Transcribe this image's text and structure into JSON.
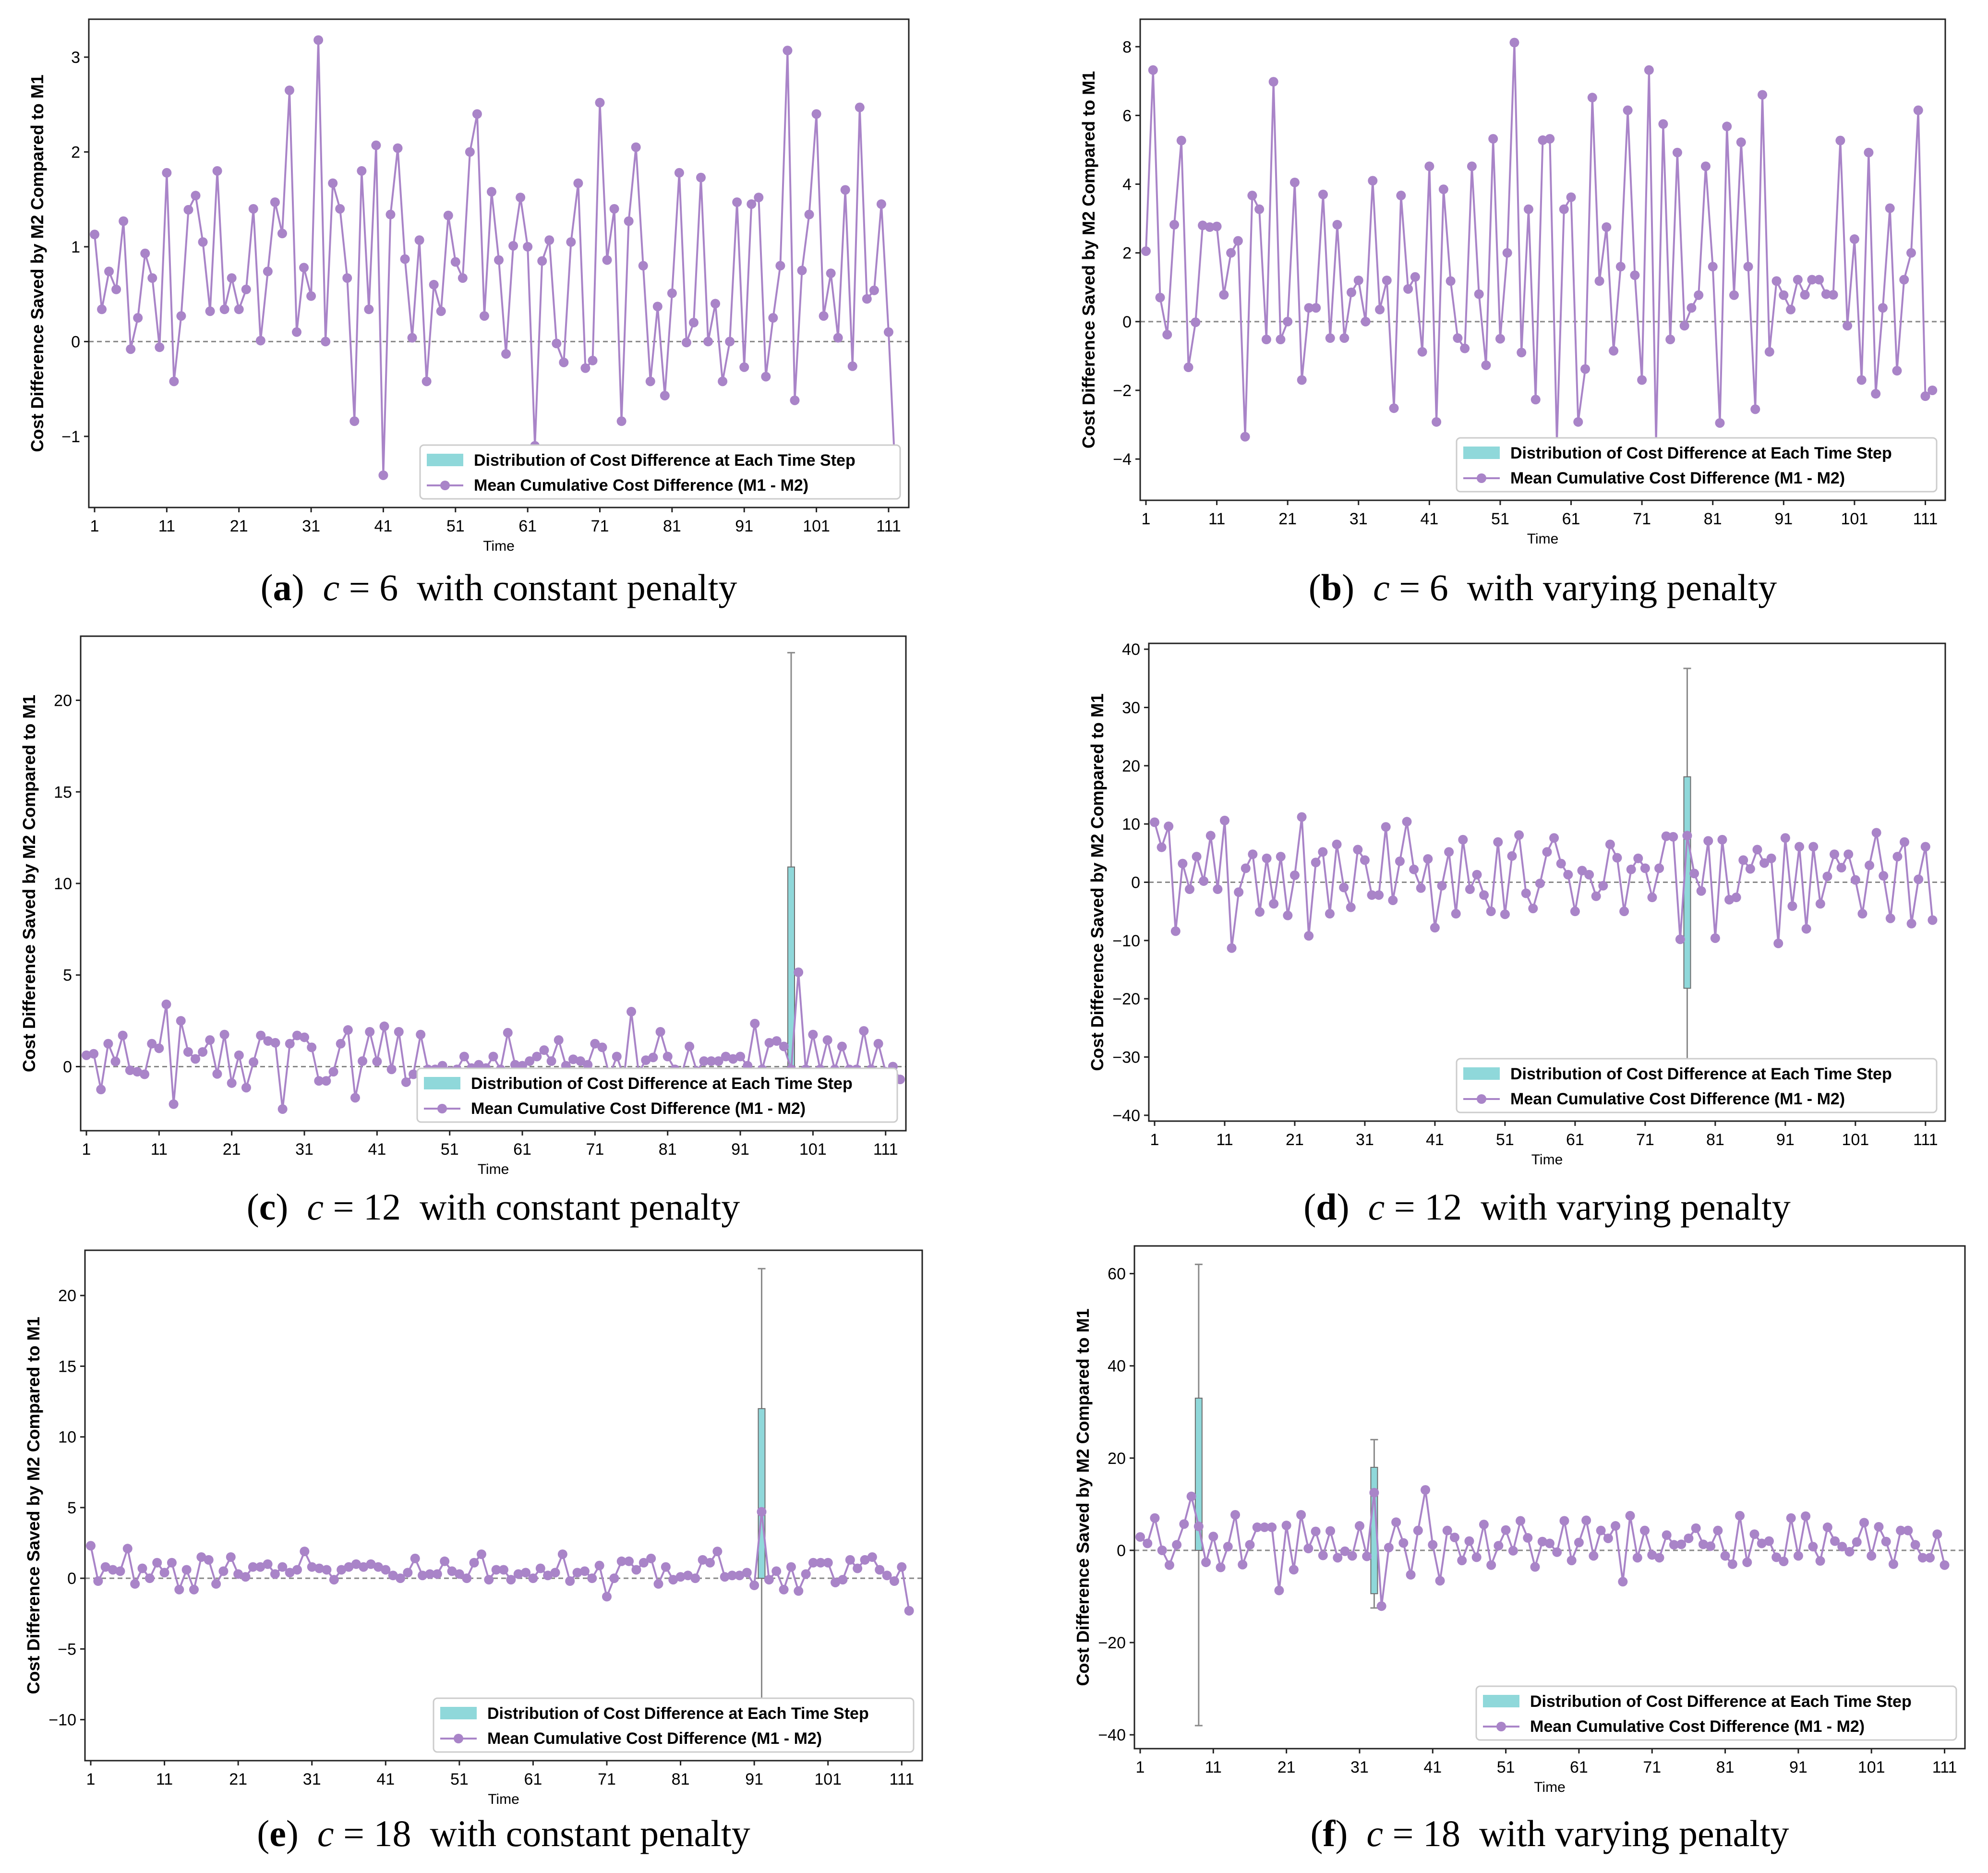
{
  "colors": {
    "series": "#a984c8",
    "box_fill": "#8fd8da",
    "zero_line": "#888888"
  },
  "chart_data": [
    {
      "type": "line",
      "panel": "a",
      "caption": {
        "letter": "a",
        "text": "with constant penalty",
        "variable": "c",
        "eq": "=",
        "value": "6"
      },
      "xlabel": "Time",
      "ylabel": "Cost Difference Saved by M2 Compared to M1",
      "xticks": [
        "1",
        "11",
        "21",
        "31",
        "41",
        "51",
        "61",
        "71",
        "81",
        "91",
        "101",
        "111"
      ],
      "yticks": [
        -1,
        0,
        1,
        2,
        3
      ],
      "xlim": [
        1,
        113
      ],
      "ylim": [
        -1.75,
        3.4
      ],
      "legend": [
        "Distribution of Cost Difference at Each Time Step",
        "Mean Cumulative Cost Difference (M1 - M2)"
      ],
      "legend_position": "lower right",
      "series": [
        {
          "name": "Mean Cumulative Cost Difference (M1 - M2)",
          "values": [
            1.13,
            0.34,
            0.74,
            0.55,
            1.27,
            -0.08,
            0.25,
            0.93,
            0.67,
            -0.06,
            1.78,
            -0.42,
            0.27,
            1.39,
            1.54,
            1.05,
            0.32,
            1.8,
            0.34,
            0.67,
            0.34,
            0.55,
            1.4,
            0.01,
            0.74,
            1.47,
            1.14,
            2.65,
            0.1,
            0.78,
            0.48,
            3.18,
            0.0,
            1.67,
            1.4,
            0.67,
            -0.84,
            1.8,
            0.34,
            2.07,
            -1.41,
            1.34,
            2.04,
            0.87,
            0.04,
            1.07,
            -0.42,
            0.6,
            0.32,
            1.33,
            0.84,
            0.67,
            2.0,
            2.4,
            0.27,
            1.58,
            0.86,
            -0.13,
            1.01,
            1.52,
            1.0,
            -1.1,
            0.85,
            1.07,
            -0.02,
            -0.22,
            1.05,
            1.67,
            -0.28,
            -0.2,
            2.52,
            0.86,
            1.4,
            -0.84,
            1.27,
            2.05,
            0.8,
            -0.42,
            0.37,
            -0.57,
            0.51,
            1.78,
            -0.01,
            0.2,
            1.73,
            0.0,
            0.4,
            -0.42,
            0.0,
            1.47,
            -0.27,
            1.45,
            1.52,
            -0.37,
            0.25,
            0.8,
            3.07,
            -0.62,
            0.75,
            1.34,
            2.4,
            0.27,
            0.72,
            0.04,
            1.6,
            -0.26,
            2.47,
            0.45,
            0.54,
            1.45,
            0.1,
            -1.52
          ]
        }
      ],
      "boxes": []
    },
    {
      "type": "line",
      "panel": "b",
      "caption": {
        "letter": "b",
        "text": "with varying penalty",
        "variable": "c",
        "eq": "=",
        "value": "6"
      },
      "xlabel": "Time",
      "ylabel": "Cost Difference Saved by M2 Compared to M1",
      "xticks": [
        "1",
        "11",
        "21",
        "31",
        "41",
        "51",
        "61",
        "71",
        "81",
        "91",
        "101",
        "111"
      ],
      "yticks": [
        -4,
        -2,
        0,
        2,
        4,
        6,
        8
      ],
      "xlim": [
        1,
        113
      ],
      "ylim": [
        -5.2,
        8.8
      ],
      "legend": [
        "Distribution of Cost Difference at Each Time Step",
        "Mean Cumulative Cost Difference (M1 - M2)"
      ],
      "legend_position": "lower right",
      "series": [
        {
          "name": "Mean Cumulative Cost Difference (M1 - M2)",
          "values": [
            2.05,
            7.32,
            0.7,
            -0.38,
            2.82,
            5.27,
            -1.33,
            -0.02,
            2.8,
            2.75,
            2.77,
            0.78,
            2.0,
            2.35,
            -3.35,
            3.67,
            3.27,
            -0.52,
            6.98,
            -0.52,
            0.0,
            4.05,
            -1.7,
            0.4,
            0.4,
            3.7,
            -0.48,
            2.82,
            -0.48,
            0.85,
            1.2,
            0.0,
            4.1,
            0.35,
            1.2,
            -2.52,
            3.67,
            0.95,
            1.3,
            -0.88,
            4.52,
            -2.92,
            3.85,
            1.18,
            -0.48,
            -0.78,
            4.52,
            0.8,
            -1.27,
            5.32,
            -0.5,
            2.0,
            8.12,
            -0.9,
            3.27,
            -2.27,
            5.28,
            5.32,
            -3.5,
            3.27,
            3.62,
            -2.92,
            -1.38,
            6.52,
            1.18,
            2.75,
            -0.85,
            1.6,
            6.15,
            1.35,
            -1.7,
            7.32,
            -3.5,
            5.75,
            -0.52,
            4.92,
            -0.12,
            0.4,
            0.77,
            4.52,
            1.6,
            -2.95,
            5.68,
            0.77,
            5.22,
            1.6,
            -2.55,
            6.6,
            -0.88,
            1.18,
            0.77,
            0.35,
            1.22,
            0.78,
            1.22,
            1.22,
            0.8,
            0.78,
            5.27,
            -0.12,
            2.4,
            -1.7,
            4.92,
            -2.1,
            0.4,
            3.3,
            -1.43,
            1.22,
            2.0,
            6.15,
            -2.17,
            -2.0
          ]
        }
      ],
      "boxes": []
    },
    {
      "type": "line",
      "panel": "c",
      "caption": {
        "letter": "c",
        "text": "with constant penalty",
        "variable": "c",
        "eq": "=",
        "value": "12"
      },
      "xlabel": "Time",
      "ylabel": "Cost Difference Saved by M2 Compared to M1",
      "xticks": [
        "1",
        "11",
        "21",
        "31",
        "41",
        "51",
        "61",
        "71",
        "81",
        "91",
        "101",
        "111"
      ],
      "yticks": [
        0,
        5,
        10,
        15,
        20
      ],
      "xlim": [
        1,
        113
      ],
      "ylim": [
        -3.5,
        23.5
      ],
      "legend": [
        "Distribution of Cost Difference at Each Time Step",
        "Mean Cumulative Cost Difference (M1 - M2)"
      ],
      "legend_position": "lower right",
      "series": [
        {
          "name": "Mean Cumulative Cost Difference (M1 - M2)",
          "values": [
            0.62,
            0.7,
            -1.25,
            1.25,
            0.28,
            1.7,
            -0.2,
            -0.28,
            -0.42,
            1.25,
            1.0,
            3.4,
            -2.05,
            2.5,
            0.8,
            0.42,
            0.8,
            1.45,
            -0.4,
            1.75,
            -0.9,
            0.62,
            -1.15,
            0.25,
            1.7,
            1.4,
            1.3,
            -2.32,
            1.25,
            1.7,
            1.6,
            1.05,
            -0.78,
            -0.78,
            -0.28,
            1.25,
            2.0,
            -1.7,
            0.3,
            1.9,
            0.28,
            2.2,
            -0.15,
            1.9,
            -0.85,
            -0.42,
            1.75,
            -0.15,
            -0.15,
            0.05,
            -0.25,
            -0.15,
            0.55,
            -0.08,
            0.1,
            -0.08,
            0.55,
            -0.15,
            1.85,
            0.1,
            0.05,
            0.3,
            0.55,
            0.9,
            0.3,
            1.45,
            0.05,
            0.4,
            0.3,
            0.1,
            1.25,
            1.05,
            -0.5,
            0.55,
            -0.55,
            3.0,
            -0.32,
            0.35,
            0.5,
            1.9,
            0.55,
            -0.15,
            -0.32,
            1.1,
            -0.25,
            0.3,
            0.3,
            0.3,
            0.55,
            0.42,
            0.55,
            0.05,
            2.35,
            -0.15,
            1.3,
            1.4,
            1.1,
            -0.15,
            5.15,
            -0.15,
            1.75,
            -0.15,
            1.45,
            -0.15,
            1.1,
            -0.15,
            -0.15,
            1.95,
            -0.15,
            1.25,
            -0.28,
            0.0,
            -0.7
          ]
        }
      ],
      "boxes": [
        {
          "t": 98,
          "q1": 0,
          "q3": 10.9,
          "whisker_low": 0,
          "whisker_high": 22.6
        }
      ]
    },
    {
      "type": "line",
      "panel": "d",
      "caption": {
        "letter": "d",
        "text": "with varying penalty",
        "variable": "c",
        "eq": "=",
        "value": "12"
      },
      "xlabel": "Time",
      "ylabel": "Cost Difference Saved by M2 Compared to M1",
      "xticks": [
        "1",
        "11",
        "21",
        "31",
        "41",
        "51",
        "61",
        "71",
        "81",
        "91",
        "101",
        "111"
      ],
      "yticks": [
        -40,
        -30,
        -20,
        -10,
        0,
        10,
        20,
        30,
        40
      ],
      "xlim": [
        1,
        113
      ],
      "ylim": [
        -41,
        41
      ],
      "legend": [
        "Distribution of Cost Difference at Each Time Step",
        "Mean Cumulative Cost Difference (M1 - M2)"
      ],
      "legend_position": "lower right",
      "series": [
        {
          "name": "Mean Cumulative Cost Difference (M1 - M2)",
          "values": [
            10.3,
            6.0,
            9.6,
            -8.4,
            3.2,
            -1.2,
            4.4,
            0.2,
            8.0,
            -1.2,
            10.6,
            -11.3,
            -1.7,
            2.4,
            4.8,
            -5.1,
            4.1,
            -3.7,
            4.4,
            -5.7,
            1.2,
            11.2,
            -9.2,
            3.4,
            5.2,
            -5.4,
            6.5,
            -0.9,
            -4.3,
            5.6,
            3.8,
            -2.2,
            -2.2,
            9.5,
            -3.1,
            3.6,
            10.4,
            2.2,
            -1.0,
            4.0,
            -7.8,
            -0.6,
            5.2,
            -5.4,
            7.3,
            -1.2,
            1.3,
            -2.2,
            -5.0,
            6.9,
            -5.5,
            4.5,
            8.1,
            -1.9,
            -4.5,
            -0.2,
            5.2,
            7.6,
            3.2,
            1.3,
            -5.0,
            2.0,
            1.3,
            -2.4,
            -0.6,
            6.5,
            4.2,
            -5.0,
            2.2,
            4.1,
            2.4,
            -2.6,
            2.4,
            7.9,
            7.8,
            -9.8,
            8.0,
            1.5,
            -1.5,
            7.1,
            -9.6,
            7.3,
            -3.0,
            -2.6,
            3.8,
            2.3,
            5.6,
            3.3,
            4.1,
            -10.5,
            7.6,
            -4.1,
            6.1,
            -8.0,
            6.1,
            -3.7,
            1.0,
            4.8,
            2.5,
            4.8,
            0.4,
            -5.4,
            2.9,
            8.5,
            1.1,
            -6.2,
            4.4,
            6.9,
            -7.1,
            0.5,
            6.1,
            -6.5
          ]
        }
      ],
      "boxes": [
        {
          "t": 77,
          "q1": -18.2,
          "q3": 18.1,
          "whisker_low": -31,
          "whisker_high": 36.7
        }
      ]
    },
    {
      "type": "line",
      "panel": "e",
      "caption": {
        "letter": "e",
        "text": "with constant penalty",
        "variable": "c",
        "eq": "=",
        "value": "18"
      },
      "xlabel": "Time",
      "ylabel": "Cost Difference Saved by M2 Compared to M1",
      "xticks": [
        "1",
        "11",
        "21",
        "31",
        "41",
        "51",
        "61",
        "71",
        "81",
        "91",
        "101",
        "111"
      ],
      "yticks": [
        -10,
        -5,
        0,
        5,
        10,
        15,
        20
      ],
      "xlim": [
        1,
        113
      ],
      "ylim": [
        -12.9,
        23.2
      ],
      "legend": [
        "Distribution of Cost Difference at Each Time Step",
        "Mean Cumulative Cost Difference (M1 - M2)"
      ],
      "legend_position": "lower right",
      "series": [
        {
          "name": "Mean Cumulative Cost Difference (M1 - M2)",
          "values": [
            2.3,
            -0.2,
            0.8,
            0.6,
            0.5,
            2.1,
            -0.4,
            0.7,
            0.0,
            1.1,
            0.4,
            1.1,
            -0.8,
            0.6,
            -0.8,
            1.5,
            1.3,
            -0.4,
            0.5,
            1.5,
            0.3,
            0.1,
            0.8,
            0.8,
            1.0,
            0.3,
            0.8,
            0.4,
            0.6,
            1.9,
            0.8,
            0.7,
            0.6,
            -0.1,
            0.6,
            0.8,
            1.0,
            0.8,
            1.0,
            0.8,
            0.6,
            0.2,
            0.0,
            0.4,
            1.4,
            0.2,
            0.3,
            0.3,
            1.2,
            0.5,
            0.3,
            0.0,
            1.1,
            1.7,
            -0.1,
            0.6,
            0.6,
            -0.1,
            0.3,
            0.4,
            0.0,
            0.7,
            0.2,
            0.4,
            1.7,
            -0.2,
            0.4,
            0.5,
            0.0,
            0.9,
            -1.3,
            0.0,
            1.2,
            1.2,
            0.6,
            1.1,
            1.4,
            -0.4,
            0.8,
            -0.1,
            0.1,
            0.2,
            0.0,
            1.3,
            1.1,
            1.9,
            0.1,
            0.2,
            0.2,
            0.4,
            -0.5,
            4.7,
            -0.1,
            0.5,
            -0.8,
            0.8,
            -0.9,
            0.3,
            1.1,
            1.1,
            1.1,
            -0.3,
            -0.1,
            1.3,
            0.7,
            1.3,
            1.5,
            0.6,
            0.2,
            -0.2,
            0.8,
            -2.3
          ]
        }
      ],
      "boxes": [
        {
          "t": 92,
          "q1": 0,
          "q3": 12.0,
          "whisker_low": -9.5,
          "whisker_high": 21.9
        }
      ]
    },
    {
      "type": "line",
      "panel": "f",
      "caption": {
        "letter": "f",
        "text": "with varying penalty",
        "variable": "c",
        "eq": "=",
        "value": "18"
      },
      "xlabel": "Time",
      "ylabel": "Cost Difference Saved by M2 Compared to M1",
      "xticks": [
        "1",
        "11",
        "21",
        "31",
        "41",
        "51",
        "61",
        "71",
        "81",
        "91",
        "101",
        "111"
      ],
      "yticks": [
        -40,
        -20,
        0,
        20,
        40,
        60
      ],
      "xlim": [
        1,
        113
      ],
      "ylim": [
        -43,
        66
      ],
      "legend": [
        "Distribution of Cost Difference at Each Time Step",
        "Mean Cumulative Cost Difference (M1 - M2)"
      ],
      "legend_position": "lower right",
      "series": [
        {
          "name": "Mean Cumulative Cost Difference (M1 - M2)",
          "values": [
            2.9,
            1.5,
            7.0,
            0.0,
            -3.2,
            1.2,
            5.7,
            11.7,
            5.2,
            -2.6,
            3.0,
            -3.7,
            0.8,
            7.7,
            -3.1,
            1.2,
            5.0,
            5.0,
            5.0,
            -8.7,
            5.4,
            -4.2,
            7.7,
            0.4,
            4.1,
            -1.1,
            4.2,
            -1.6,
            -0.2,
            -1.2,
            5.3,
            -1.3,
            12.5,
            -12.1,
            0.6,
            6.1,
            1.6,
            -5.3,
            4.3,
            13.1,
            1.2,
            -6.6,
            4.3,
            2.8,
            -2.2,
            2.0,
            -1.5,
            5.6,
            -3.2,
            1.0,
            4.4,
            -0.1,
            6.4,
            2.7,
            -3.6,
            1.9,
            1.5,
            -0.4,
            6.4,
            -2.2,
            1.7,
            6.5,
            -1.2,
            4.3,
            2.6,
            5.3,
            -6.8,
            7.5,
            -1.6,
            4.3,
            -1.0,
            -1.6,
            3.3,
            1.2,
            1.3,
            2.6,
            4.8,
            1.3,
            0.9,
            4.3,
            -1.2,
            -3.0,
            7.5,
            -2.6,
            3.5,
            1.5,
            2.0,
            -1.5,
            -2.4,
            7.0,
            -1.2,
            7.4,
            0.8,
            -2.3,
            5.0,
            2.0,
            0.8,
            -0.3,
            1.8,
            6.0,
            -1.2,
            5.1,
            1.9,
            -3.0,
            4.3,
            4.3,
            1.2,
            -1.6,
            -1.6,
            3.5,
            -3.2
          ]
        }
      ],
      "boxes": [
        {
          "t": 9,
          "q1": 0,
          "q3": 33.0,
          "whisker_low": -38,
          "whisker_high": 62
        },
        {
          "t": 33,
          "q1": -9.4,
          "q3": 18.0,
          "whisker_low": -12.5,
          "whisker_high": 24.0
        }
      ]
    }
  ]
}
